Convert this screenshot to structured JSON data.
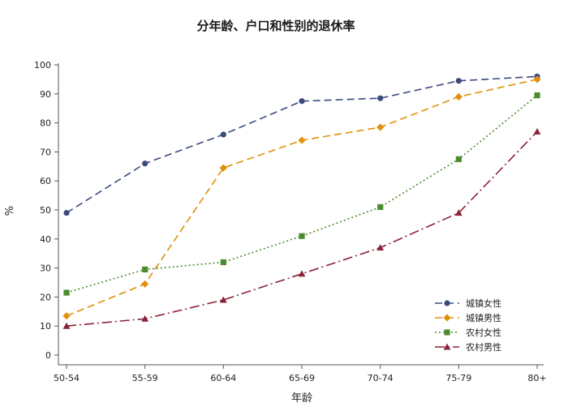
{
  "chart_data": {
    "type": "line",
    "title": "分年龄、户口和性别的退休率",
    "xlabel": "年龄",
    "ylabel": "%",
    "ylim": [
      0,
      100
    ],
    "yticks": [
      0,
      10,
      20,
      30,
      40,
      50,
      60,
      70,
      80,
      90,
      100
    ],
    "categories": [
      "50-54",
      "55-59",
      "60-64",
      "65-69",
      "70-74",
      "75-79",
      "80+"
    ],
    "grid": false,
    "legend_position": "bottom-right",
    "series": [
      {
        "name": "城镇女性",
        "color": "#3b4a7e",
        "marker": "circle",
        "dash": "long-dash",
        "values": [
          49,
          66,
          76,
          87.5,
          88.5,
          94.5,
          96
        ]
      },
      {
        "name": "城镇男性",
        "color": "#e0900a",
        "marker": "diamond",
        "dash": "long-dash",
        "values": [
          13.5,
          24.5,
          64.5,
          74,
          78.5,
          89,
          95
        ]
      },
      {
        "name": "农村女性",
        "color": "#4c8c2f",
        "marker": "square",
        "dash": "dotted",
        "values": [
          21.5,
          29.5,
          32,
          41,
          51,
          67.5,
          89.5
        ]
      },
      {
        "name": "农村男性",
        "color": "#8a2238",
        "marker": "triangle",
        "dash": "dash-dot",
        "values": [
          10,
          12.5,
          19,
          28,
          37,
          49,
          77
        ]
      }
    ]
  }
}
